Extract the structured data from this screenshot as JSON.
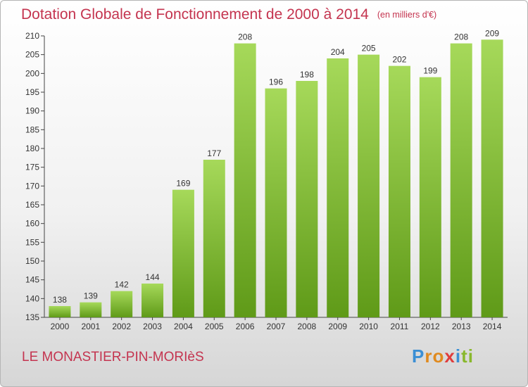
{
  "title": "Dotation Globale de Fonctionnement de 2000 à 2014",
  "subtitle": "(en milliers d'€)",
  "place_name": "LE MONASTIER-PIN-MORIèS",
  "logo": {
    "letters": [
      "P",
      "r",
      "o",
      "x",
      "i",
      "t",
      "i"
    ],
    "colors": [
      "#3b8fd4",
      "#e08a1e",
      "#e08a1e",
      "#e03c3c",
      "#3b8fd4",
      "#89b82c",
      "#89b82c"
    ]
  },
  "colors": {
    "bar_light": "#a6d95a",
    "bar_dark": "#5f9a18",
    "title": "#c4344f"
  },
  "chart_data": {
    "type": "bar",
    "title": "Dotation Globale de Fonctionnement de 2000 à 2014",
    "ylabel": "en milliers d'€",
    "categories": [
      "2000",
      "2001",
      "2002",
      "2003",
      "2004",
      "2005",
      "2006",
      "2007",
      "2008",
      "2009",
      "2010",
      "2011",
      "2012",
      "2013",
      "2014"
    ],
    "values": [
      138,
      139,
      142,
      144,
      169,
      177,
      208,
      196,
      198,
      204,
      205,
      202,
      199,
      208,
      209
    ],
    "ylim": [
      135,
      210
    ],
    "yticks": [
      135,
      140,
      145,
      150,
      155,
      160,
      165,
      170,
      175,
      180,
      185,
      190,
      195,
      200,
      205,
      210
    ],
    "grid": false
  }
}
